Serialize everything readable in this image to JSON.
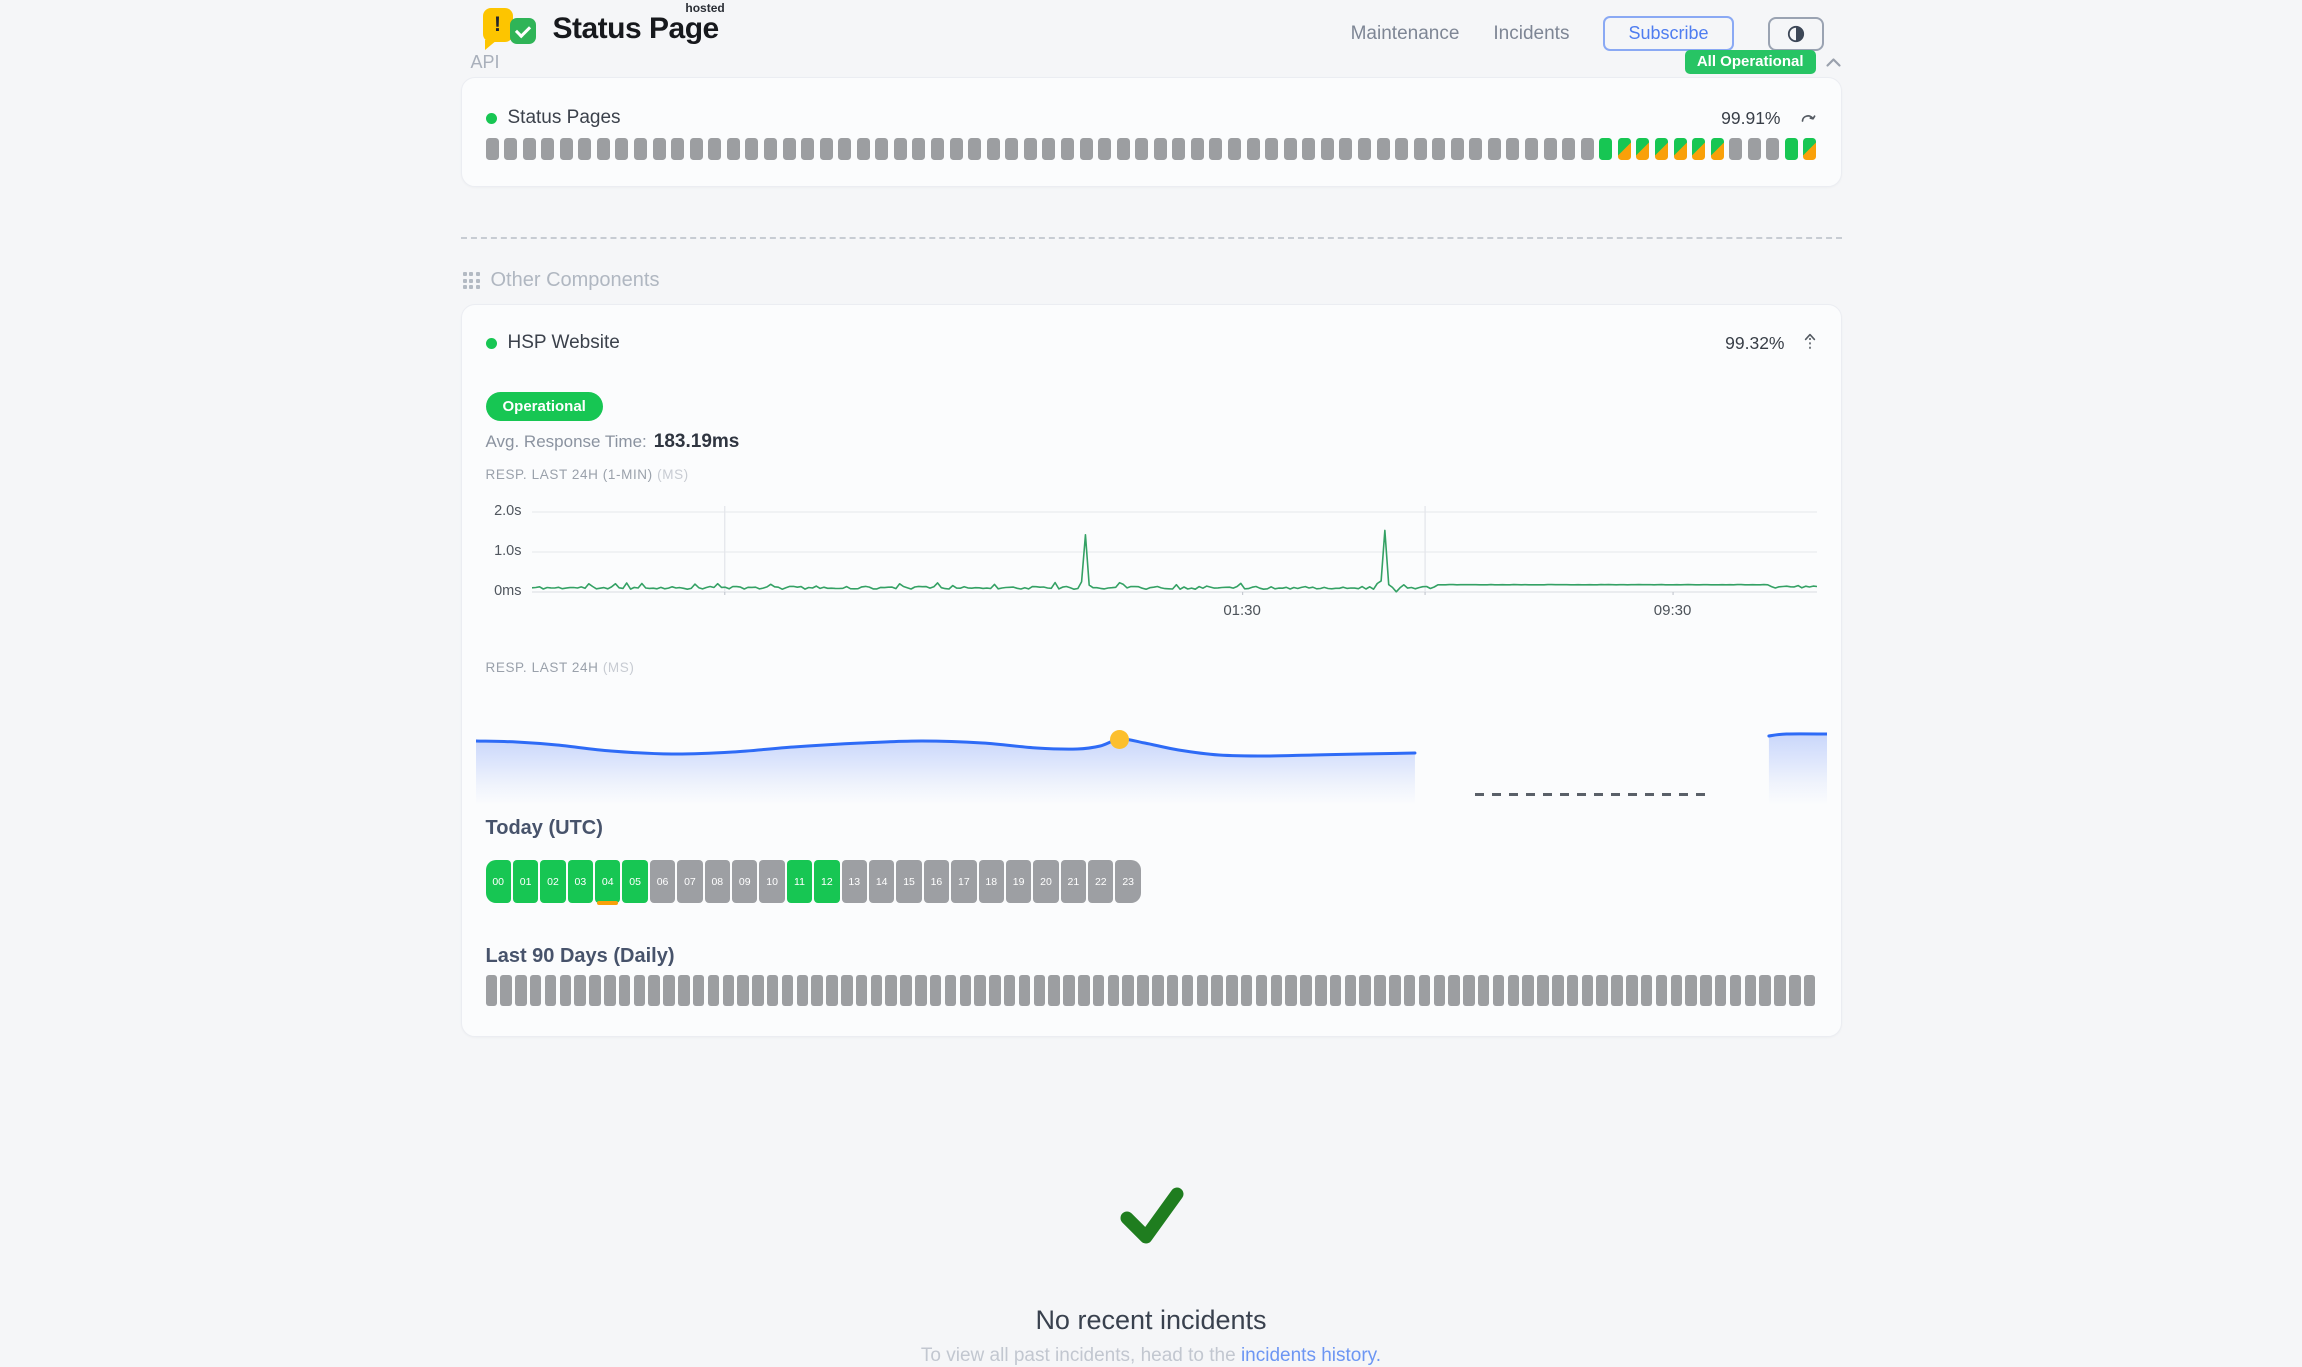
{
  "colors": {
    "green": "#17c653",
    "orange": "#f9a009",
    "gray_bar": "#9c9ea1",
    "badge_green": "#27c464",
    "blue_line": "#2e6bf6",
    "marker_yellow": "#fcbf2d",
    "link_blue": "#6d96f3",
    "check_green": "#1f7d1f",
    "subscribe_blue": "#4f7df0",
    "chart_green": "#34a164"
  },
  "header": {
    "brand": {
      "title": "Status Page",
      "superscript": "hosted",
      "bubble_char": "!"
    },
    "nav": {
      "maintenance": "Maintenance",
      "incidents": "Incidents",
      "subscribe": "Subscribe"
    },
    "icons": {
      "theme_toggle": "half-contrast-circle",
      "status_chevron": "chevron-up"
    },
    "overall_status": "All Operational"
  },
  "api_section": {
    "title": "API",
    "component": {
      "name": "Status Pages",
      "uptime_pct": "99.91%"
    },
    "bars": [
      "n",
      "n",
      "n",
      "n",
      "n",
      "n",
      "n",
      "n",
      "n",
      "n",
      "n",
      "n",
      "n",
      "n",
      "n",
      "n",
      "n",
      "n",
      "n",
      "n",
      "n",
      "n",
      "n",
      "n",
      "n",
      "n",
      "n",
      "n",
      "n",
      "n",
      "n",
      "n",
      "n",
      "n",
      "n",
      "n",
      "n",
      "n",
      "n",
      "n",
      "n",
      "n",
      "n",
      "n",
      "n",
      "n",
      "n",
      "n",
      "n",
      "n",
      "n",
      "n",
      "n",
      "n",
      "n",
      "n",
      "n",
      "n",
      "n",
      "n",
      "u",
      "m",
      "m",
      "m",
      "m",
      "m",
      "m",
      "n",
      "n",
      "n",
      "u",
      "m"
    ]
  },
  "other_section": {
    "title": "Other Components",
    "component": {
      "name": "HSP Website",
      "uptime_pct": "99.32%",
      "status": "Operational",
      "avg_label": "Avg. Response Time:",
      "avg_value": "183.19ms"
    },
    "chart_1min": {
      "type": "line",
      "label": "RESP. LAST 24H (1-MIN)",
      "unit": "(MS)",
      "y_ticks": [
        {
          "label": "2.0s",
          "y": 12
        },
        {
          "label": "1.0s",
          "y": 52
        },
        {
          "label": "0ms",
          "y": 92
        }
      ],
      "x_ticks": [
        {
          "label": "01:30",
          "f": 0.553
        },
        {
          "label": "09:30",
          "f": 0.888
        }
      ],
      "gridlines_f": [
        0.15,
        0.695
      ],
      "tick_f": [
        0.15,
        0.553,
        0.695,
        0.888
      ],
      "baseline_ms": 105,
      "noise_ms": 70,
      "flat": {
        "from": 0.703,
        "to": 0.962,
        "ms": 182
      },
      "spikes": [
        {
          "f": 0.432,
          "ms": 1430
        },
        {
          "f": 0.664,
          "ms": 1540
        }
      ],
      "dip": {
        "f": 0.674,
        "ms": 6
      },
      "seed": 11,
      "points_n": 340,
      "color": "#34a164"
    },
    "chart_daily": {
      "type": "area",
      "label": "RESP. LAST 24H",
      "unit": "(MS)",
      "segments": [
        [
          [
            0,
            36
          ],
          [
            0.03,
            37
          ],
          [
            0.06,
            40
          ],
          [
            0.1,
            46
          ],
          [
            0.145,
            49
          ],
          [
            0.19,
            47
          ],
          [
            0.235,
            42
          ],
          [
            0.285,
            38
          ],
          [
            0.33,
            36
          ],
          [
            0.375,
            38
          ],
          [
            0.415,
            43
          ],
          [
            0.445,
            44
          ],
          [
            0.462,
            41
          ],
          [
            0.477,
            34
          ],
          [
            0.495,
            38
          ],
          [
            0.52,
            45
          ],
          [
            0.55,
            50
          ],
          [
            0.585,
            51
          ],
          [
            0.62,
            50
          ],
          [
            0.655,
            49
          ],
          [
            0.695,
            48
          ]
        ],
        [
          [
            0.957,
            31
          ],
          [
            0.97,
            29
          ],
          [
            1.0,
            29
          ]
        ]
      ],
      "marker": {
        "f": 0.477,
        "y": 34
      },
      "gap_dash": {
        "from": 0.74,
        "to": 0.912,
        "y": 88
      },
      "color": "#2e6bf6",
      "marker_color": "#fcbf2d"
    },
    "today": {
      "title": "Today (UTC)",
      "hours": [
        {
          "h": "00",
          "s": "u"
        },
        {
          "h": "01",
          "s": "u"
        },
        {
          "h": "02",
          "s": "u"
        },
        {
          "h": "03",
          "s": "u"
        },
        {
          "h": "04",
          "s": "u",
          "marker": true
        },
        {
          "h": "05",
          "s": "u"
        },
        {
          "h": "06",
          "s": "n"
        },
        {
          "h": "07",
          "s": "n"
        },
        {
          "h": "08",
          "s": "n"
        },
        {
          "h": "09",
          "s": "n"
        },
        {
          "h": "10",
          "s": "n"
        },
        {
          "h": "11",
          "s": "u"
        },
        {
          "h": "12",
          "s": "u"
        },
        {
          "h": "13",
          "s": "n"
        },
        {
          "h": "14",
          "s": "n"
        },
        {
          "h": "15",
          "s": "n"
        },
        {
          "h": "16",
          "s": "n"
        },
        {
          "h": "17",
          "s": "n"
        },
        {
          "h": "18",
          "s": "n"
        },
        {
          "h": "19",
          "s": "n"
        },
        {
          "h": "20",
          "s": "n"
        },
        {
          "h": "21",
          "s": "n"
        },
        {
          "h": "22",
          "s": "n"
        },
        {
          "h": "23",
          "s": "n"
        }
      ]
    },
    "last90": {
      "title": "Last 90 Days (Daily)",
      "days": [
        "n",
        "n",
        "n",
        "n",
        "n",
        "n",
        "n",
        "n",
        "n",
        "n",
        "n",
        "n",
        "n",
        "n",
        "n",
        "n",
        "n",
        "n",
        "n",
        "n",
        "n",
        "n",
        "n",
        "n",
        "n",
        "n",
        "n",
        "n",
        "n",
        "n",
        "n",
        "n",
        "u",
        "u",
        "u",
        "u",
        "u",
        "u",
        "u",
        "u",
        "u",
        "u",
        "u",
        "u",
        "u",
        "u",
        "u",
        "m",
        "m",
        "m",
        "m",
        "m",
        "u",
        "m",
        "m",
        "m",
        "m",
        "u",
        "m",
        "m",
        "m",
        "m",
        "m",
        "u",
        "u",
        "m",
        "m",
        "u",
        "m",
        "u",
        "m",
        "m",
        "u",
        "m",
        "m",
        "m",
        "u",
        "u",
        "m",
        "u",
        "m",
        "m",
        "m",
        "u",
        "u",
        "n",
        "n",
        "n",
        "m",
        "m"
      ]
    }
  },
  "footer": {
    "title": "No recent incidents",
    "subtitle_prefix": "To view all past incidents, head to the ",
    "link_label": "incidents history."
  }
}
